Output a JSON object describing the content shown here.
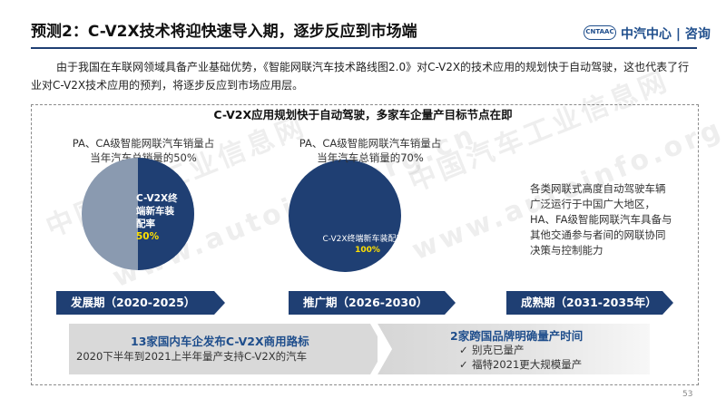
{
  "header": {
    "title": "预测2：C-V2X技术将迎快速导入期，逐步反应到市场端",
    "logo_text": "CNTAAC",
    "brand": "中汽中心 | 咨询"
  },
  "intro": "由于我国在车联网领域具备产业基础优势，《智能网联汽车技术路线图2.0》对C-V2X的技术应用的规划快于自动驾驶，这也代表了行业对C-V2X技术应用的预判，将逐步反应到市场应用层。",
  "panel": {
    "title": "C-V2X应用规划快于自动驾驶，多家车企量产目标节点在即",
    "pie1": {
      "caption_line1": "PA、CA级智能网联汽车销量占",
      "caption_line2": "当年汽车总销量的50%",
      "label_lines": [
        "C-V2X终",
        "端新车装",
        "配率"
      ],
      "label_value": "50%",
      "value": 0.5,
      "colors": {
        "filled": "#1f3f73",
        "rest": "#8a9ab0"
      }
    },
    "pie2": {
      "caption_line1": "PA、CA级智能网联汽车销量占",
      "caption_line2": "当年汽车总销量的70%",
      "label_line": "C-V2X终端新车装配率，",
      "label_value": "100%",
      "value": 1.0,
      "color": "#1f3f73"
    },
    "right_text": "各类网联式高度自动驾驶车辆广泛运行于中国广大地区，HA、FA级智能网联汽车具备与其他交通参与者间的网联协同决策与控制能力",
    "phases": [
      {
        "label": "发展期（2020-2025）"
      },
      {
        "label": "推广期（2026-2030）"
      },
      {
        "label": "成熟期（2031-2035年）"
      }
    ],
    "bottom": {
      "left_title": "13家国内车企发布C-V2X商用路标",
      "left_sub": "2020下半年到2021上半年量产支持C-V2X的汽车",
      "right_title": "2家跨国品牌明确量产时间",
      "right_items": [
        "别克已量产",
        "福特2021更大规模量产"
      ]
    }
  },
  "watermarks": [
    "中国汽车工业信息网",
    "www.autoinfo.org.cn"
  ],
  "page_number": "53",
  "colors": {
    "navy": "#1f3f73",
    "accent_yellow": "#ffe000"
  }
}
